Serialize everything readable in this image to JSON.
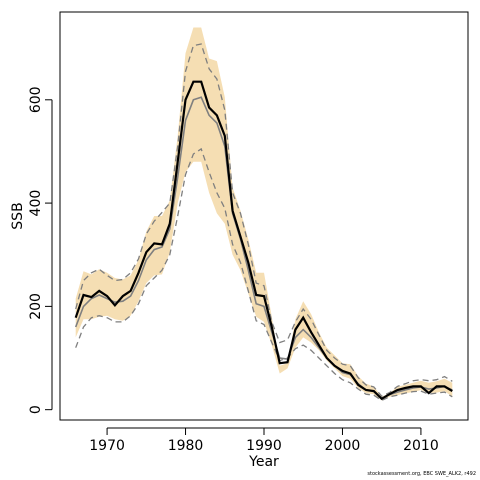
{
  "chart_data": {
    "type": "line",
    "title": "",
    "xlabel": "Year",
    "ylabel": "SSB",
    "xlim": [
      1964,
      2016
    ],
    "ylim": [
      -20,
      770
    ],
    "x_ticks": [
      1970,
      1980,
      1990,
      2000,
      2010
    ],
    "y_ticks": [
      0,
      200,
      400,
      600
    ],
    "grid": false,
    "legend": "none",
    "colors": {
      "band": "#f5deb3",
      "main": "#000000",
      "median": "#7f7f7f",
      "ci_dashed": "#7f7f7f"
    },
    "x": [
      1966,
      1967,
      1968,
      1969,
      1970,
      1971,
      1972,
      1973,
      1974,
      1975,
      1976,
      1977,
      1978,
      1979,
      1980,
      1981,
      1982,
      1983,
      1984,
      1985,
      1986,
      1987,
      1988,
      1989,
      1990,
      1991,
      1992,
      1993,
      1994,
      1995,
      1996,
      1997,
      1998,
      1999,
      2000,
      2001,
      2002,
      2003,
      2004,
      2005,
      2006,
      2007,
      2008,
      2009,
      2010,
      2011,
      2012,
      2013,
      2014
    ],
    "series": [
      {
        "role": "band_upper",
        "values": [
          215,
          268,
          262,
          272,
          265,
          255,
          252,
          260,
          290,
          345,
          375,
          375,
          405,
          530,
          690,
          740,
          740,
          680,
          675,
          605,
          430,
          385,
          330,
          265,
          265,
          180,
          85,
          90,
          175,
          210,
          185,
          150,
          120,
          105,
          90,
          88,
          65,
          50,
          45,
          25,
          32,
          44,
          48,
          52,
          56,
          52,
          55,
          60,
          52
        ]
      },
      {
        "role": "band_lower",
        "values": [
          140,
          175,
          175,
          180,
          182,
          175,
          172,
          182,
          210,
          245,
          260,
          262,
          305,
          400,
          460,
          480,
          480,
          420,
          380,
          360,
          300,
          270,
          225,
          180,
          170,
          125,
          70,
          80,
          120,
          140,
          130,
          115,
          95,
          80,
          65,
          60,
          42,
          32,
          30,
          18,
          25,
          28,
          32,
          34,
          38,
          32,
          33,
          36,
          25
        ]
      },
      {
        "role": "upper_ci_dashed",
        "values": [
          195,
          250,
          265,
          272,
          260,
          250,
          252,
          265,
          292,
          340,
          365,
          382,
          400,
          510,
          655,
          705,
          708,
          660,
          640,
          580,
          420,
          380,
          320,
          245,
          240,
          170,
          130,
          135,
          170,
          195,
          175,
          145,
          115,
          100,
          88,
          85,
          62,
          48,
          44,
          26,
          33,
          45,
          50,
          56,
          58,
          56,
          58,
          64,
          55
        ]
      },
      {
        "role": "lower_ci_dashed",
        "values": [
          120,
          160,
          178,
          182,
          178,
          170,
          170,
          182,
          205,
          240,
          255,
          270,
          300,
          375,
          455,
          495,
          505,
          460,
          420,
          390,
          320,
          285,
          230,
          172,
          165,
          130,
          95,
          100,
          118,
          125,
          115,
          100,
          85,
          70,
          58,
          52,
          40,
          30,
          28,
          18,
          25,
          28,
          32,
          35,
          36,
          30,
          32,
          34,
          25
        ]
      },
      {
        "role": "median",
        "values": [
          160,
          200,
          215,
          222,
          215,
          208,
          210,
          220,
          250,
          290,
          310,
          315,
          350,
          450,
          560,
          600,
          605,
          570,
          555,
          510,
          380,
          330,
          270,
          205,
          200,
          150,
          100,
          98,
          140,
          155,
          140,
          120,
          100,
          85,
          72,
          68,
          50,
          38,
          36,
          22,
          29,
          34,
          38,
          42,
          44,
          40,
          42,
          45,
          38
        ]
      },
      {
        "role": "estimate",
        "values": [
          178,
          222,
          218,
          230,
          220,
          202,
          220,
          230,
          265,
          305,
          322,
          320,
          360,
          480,
          600,
          635,
          635,
          585,
          570,
          530,
          385,
          335,
          285,
          222,
          220,
          160,
          90,
          92,
          155,
          178,
          150,
          125,
          100,
          85,
          75,
          70,
          48,
          38,
          36,
          21,
          30,
          38,
          42,
          45,
          45,
          32,
          45,
          45,
          36
        ]
      }
    ]
  },
  "footer": {
    "credit": "stockassessment.org, EBC SWE_ALK2, r492"
  }
}
